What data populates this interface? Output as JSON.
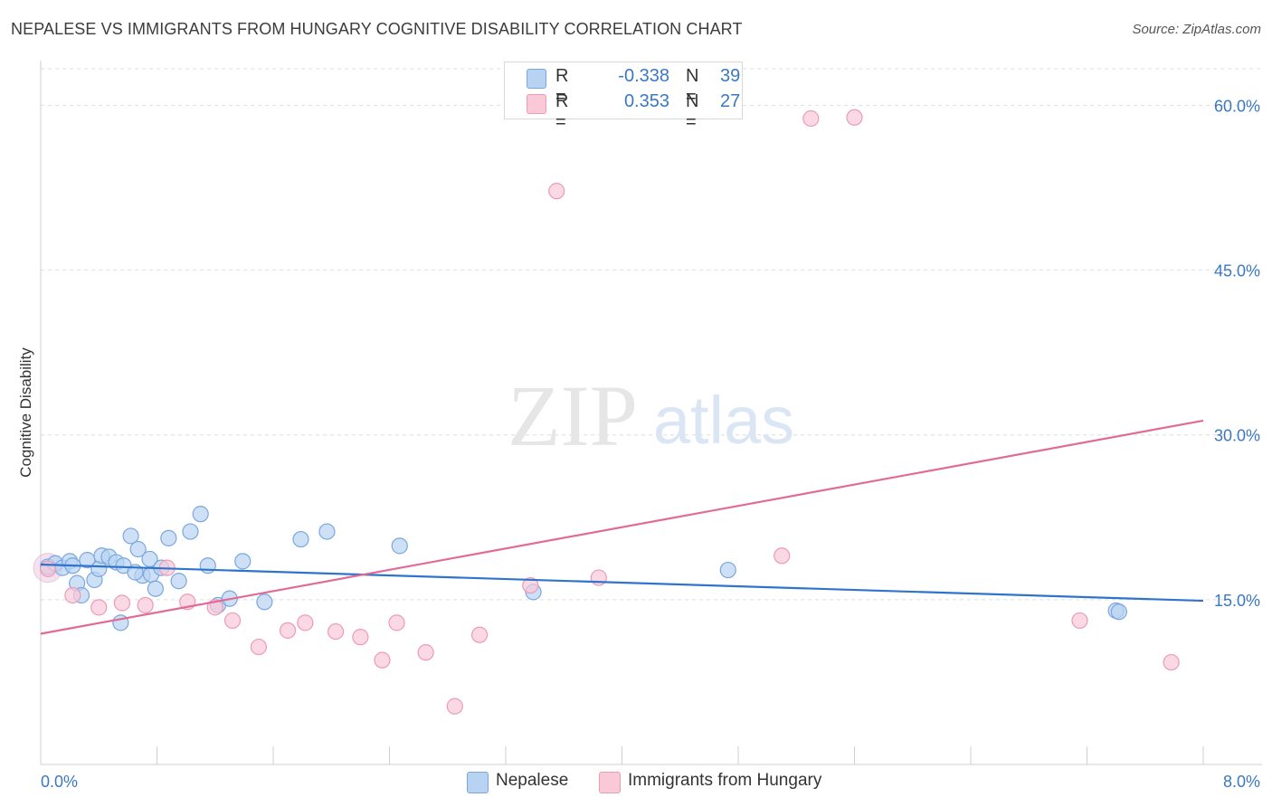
{
  "header": {
    "title": "NEPALESE VS IMMIGRANTS FROM HUNGARY COGNITIVE DISABILITY CORRELATION CHART",
    "source": "Source: ZipAtlas.com"
  },
  "legend": {
    "series1": {
      "r_label": "R =",
      "r_value": "-0.338",
      "n_label": "N =",
      "n_value": "39"
    },
    "series2": {
      "r_label": "R =",
      "r_value": "0.353",
      "n_label": "N =",
      "n_value": "27"
    }
  },
  "bottom_legend": {
    "series1": "Nepalese",
    "series2": "Immigrants from Hungary"
  },
  "colors": {
    "blue_fill": "#b8d3f2",
    "blue_stroke": "#7aa7dd",
    "blue_line": "#2f74cc",
    "pink_fill": "#f9c9d8",
    "pink_stroke": "#ec9bb5",
    "pink_line": "#e16b96",
    "axis_text": "#3a78c4",
    "grid": "#dedede"
  },
  "watermark": {
    "part1": "ZIP",
    "part2": "atlas"
  },
  "chart_data": {
    "type": "scatter",
    "title": "NEPALESE VS IMMIGRANTS FROM HUNGARY COGNITIVE DISABILITY CORRELATION CHART",
    "xlabel": "",
    "ylabel": "Cognitive Disability",
    "xlim": [
      0,
      8
    ],
    "ylim": [
      0,
      63
    ],
    "x_tick_labels": [
      "0.0%",
      "8.0%"
    ],
    "y_ticks": [
      15,
      30,
      45,
      60
    ],
    "y_tick_labels": [
      "15.0%",
      "30.0%",
      "45.0%",
      "60.0%"
    ],
    "grid": true,
    "series": [
      {
        "name": "Nepalese",
        "points": [
          [
            0.05,
            18.0
          ],
          [
            0.1,
            18.3
          ],
          [
            0.15,
            17.9
          ],
          [
            0.2,
            18.5
          ],
          [
            0.22,
            18.1
          ],
          [
            0.25,
            16.5
          ],
          [
            0.28,
            15.4
          ],
          [
            0.32,
            18.6
          ],
          [
            0.37,
            16.8
          ],
          [
            0.4,
            17.8
          ],
          [
            0.42,
            19.0
          ],
          [
            0.47,
            18.9
          ],
          [
            0.52,
            18.4
          ],
          [
            0.55,
            12.9
          ],
          [
            0.57,
            18.1
          ],
          [
            0.62,
            20.8
          ],
          [
            0.67,
            19.6
          ],
          [
            0.7,
            17.2
          ],
          [
            0.75,
            18.7
          ],
          [
            0.76,
            17.3
          ],
          [
            0.79,
            16.0
          ],
          [
            0.83,
            17.9
          ],
          [
            0.88,
            20.6
          ],
          [
            0.95,
            16.7
          ],
          [
            1.03,
            21.2
          ],
          [
            1.1,
            22.8
          ],
          [
            1.15,
            18.1
          ],
          [
            1.22,
            14.5
          ],
          [
            1.3,
            15.1
          ],
          [
            1.39,
            18.5
          ],
          [
            1.54,
            14.8
          ],
          [
            1.79,
            20.5
          ],
          [
            1.97,
            21.2
          ],
          [
            2.47,
            19.9
          ],
          [
            3.39,
            15.7
          ],
          [
            4.73,
            17.7
          ],
          [
            7.4,
            14.0
          ],
          [
            7.42,
            13.9
          ],
          [
            0.65,
            17.5
          ]
        ],
        "trend": {
          "x": [
            0,
            8
          ],
          "y": [
            18.2,
            14.9
          ]
        }
      },
      {
        "name": "Immigrants from Hungary",
        "points": [
          [
            0.05,
            17.8
          ],
          [
            0.22,
            15.4
          ],
          [
            0.4,
            14.3
          ],
          [
            0.56,
            14.7
          ],
          [
            0.72,
            14.5
          ],
          [
            0.87,
            17.9
          ],
          [
            1.01,
            14.8
          ],
          [
            1.2,
            14.3
          ],
          [
            1.32,
            13.1
          ],
          [
            1.5,
            10.7
          ],
          [
            1.7,
            12.2
          ],
          [
            1.82,
            12.9
          ],
          [
            2.03,
            12.1
          ],
          [
            2.2,
            11.6
          ],
          [
            2.35,
            9.5
          ],
          [
            2.45,
            12.9
          ],
          [
            2.65,
            10.2
          ],
          [
            2.85,
            5.3
          ],
          [
            3.02,
            11.8
          ],
          [
            3.37,
            16.3
          ],
          [
            3.55,
            52.2
          ],
          [
            3.84,
            17.0
          ],
          [
            5.1,
            19.0
          ],
          [
            5.3,
            58.8
          ],
          [
            5.6,
            58.9
          ],
          [
            7.15,
            13.1
          ],
          [
            7.78,
            9.3
          ]
        ],
        "trend": {
          "x": [
            0,
            8
          ],
          "y": [
            11.9,
            31.3
          ]
        }
      }
    ]
  }
}
